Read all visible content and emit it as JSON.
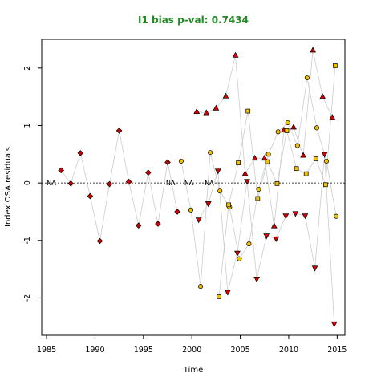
{
  "chart_data": {
    "type": "scatter",
    "title": "I1 bias p-val: 0.7434",
    "title_color": "#228B22",
    "xlabel": "Time",
    "ylabel": "Index OSA residuals",
    "xlim": [
      1984.5,
      2015.8
    ],
    "ylim": [
      -2.65,
      2.5
    ],
    "xticks": [
      1985,
      1990,
      1995,
      2000,
      2005,
      2010,
      2015
    ],
    "yticks": [
      -2,
      -1,
      0,
      1,
      2
    ],
    "reference_line": 0,
    "connector_color": "#cccccc",
    "grid": false,
    "legend": "none",
    "na_labels": [
      {
        "x": 1985.5,
        "text": "NA"
      },
      {
        "x": 1997.8,
        "text": "NA"
      },
      {
        "x": 1999.7,
        "text": "NA"
      },
      {
        "x": 2001.8,
        "text": "NA"
      }
    ],
    "series": [
      {
        "marker": "diamond",
        "fill": "#cc0000",
        "points": [
          [
            1986.5,
            0.22
          ],
          [
            1987.5,
            -0.01
          ],
          [
            1988.5,
            0.52
          ],
          [
            1989.5,
            -0.23
          ],
          [
            1990.5,
            -1.01
          ],
          [
            1991.5,
            -0.02
          ],
          [
            1992.5,
            0.91
          ],
          [
            1993.5,
            0.02
          ],
          [
            1994.5,
            -0.74
          ],
          [
            1995.5,
            0.18
          ],
          [
            1996.5,
            -0.71
          ],
          [
            1997.5,
            0.36
          ],
          [
            1998.5,
            -0.5
          ]
        ]
      },
      {
        "marker": "triangle",
        "fill": "#dd0000",
        "points": [
          [
            2000.5,
            1.24
          ],
          [
            2001.5,
            1.22
          ],
          [
            2002.5,
            1.3
          ],
          [
            2003.5,
            1.51
          ],
          [
            2004.5,
            2.22
          ],
          [
            2005.5,
            0.16
          ],
          [
            2006.5,
            0.43
          ],
          [
            2007.5,
            0.43
          ],
          [
            2008.5,
            -0.75
          ],
          [
            2009.5,
            0.92
          ],
          [
            2010.5,
            0.97
          ],
          [
            2011.5,
            0.48
          ],
          [
            2012.5,
            2.31
          ],
          [
            2013.5,
            1.5
          ],
          [
            2014.5,
            1.14
          ]
        ]
      },
      {
        "marker": "inverted-triangle",
        "fill": "#dd0000",
        "points": [
          [
            2000.7,
            -0.64
          ],
          [
            2001.7,
            -0.36
          ],
          [
            2002.7,
            0.21
          ],
          [
            2003.7,
            -1.9
          ],
          [
            2004.7,
            -1.22
          ],
          [
            2005.7,
            0.03
          ],
          [
            2006.7,
            -1.67
          ],
          [
            2007.7,
            -0.92
          ],
          [
            2008.7,
            -0.97
          ],
          [
            2009.7,
            -0.57
          ],
          [
            2010.7,
            -0.53
          ],
          [
            2011.7,
            -0.57
          ],
          [
            2012.7,
            -1.48
          ],
          [
            2013.7,
            0.5
          ],
          [
            2014.7,
            -2.45
          ]
        ]
      },
      {
        "marker": "circle",
        "fill": "#f2c200",
        "points": [
          [
            1998.9,
            0.38
          ],
          [
            1999.9,
            -0.47
          ],
          [
            2000.9,
            -1.8
          ],
          [
            2001.9,
            0.53
          ],
          [
            2002.9,
            -0.14
          ],
          [
            2003.9,
            -0.42
          ],
          [
            2004.9,
            -1.32
          ],
          [
            2005.9,
            -1.06
          ],
          [
            2006.9,
            -0.11
          ],
          [
            2007.9,
            0.5
          ],
          [
            2008.9,
            0.89
          ],
          [
            2009.9,
            1.05
          ],
          [
            2010.9,
            0.65
          ],
          [
            2011.9,
            1.83
          ],
          [
            2012.9,
            0.96
          ],
          [
            2013.9,
            0.38
          ],
          [
            2014.9,
            -0.58
          ]
        ]
      },
      {
        "marker": "square",
        "fill": "#f2c200",
        "points": [
          [
            2002.8,
            -1.98
          ],
          [
            2003.8,
            -0.38
          ],
          [
            2004.8,
            0.35
          ],
          [
            2005.8,
            1.25
          ],
          [
            2006.8,
            -0.27
          ],
          [
            2007.8,
            0.37
          ],
          [
            2008.8,
            -0.01
          ],
          [
            2009.8,
            0.91
          ],
          [
            2010.8,
            0.25
          ],
          [
            2011.8,
            0.16
          ],
          [
            2012.8,
            0.42
          ],
          [
            2013.8,
            -0.03
          ],
          [
            2014.8,
            2.04
          ]
        ]
      }
    ]
  }
}
